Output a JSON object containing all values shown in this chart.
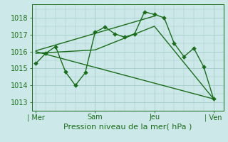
{
  "bg_color": "#cce8e8",
  "grid_color": "#aacfcf",
  "line_color": "#1a6e1a",
  "title": "Pression niveau de la mer( hPa )",
  "ylim": [
    1012.5,
    1018.8
  ],
  "yticks": [
    1013,
    1014,
    1015,
    1016,
    1017,
    1018
  ],
  "xlim": [
    -0.2,
    9.5
  ],
  "xtick_labels": [
    "| Mer",
    "Sam",
    "Jeu",
    "| Ven"
  ],
  "xtick_positions": [
    0.0,
    3.0,
    6.0,
    9.0
  ],
  "series1_x": [
    0,
    0.5,
    1.0,
    1.5,
    2.0,
    2.5,
    3.0,
    3.5,
    4.0,
    4.5,
    5.0,
    5.5,
    6.0,
    6.5,
    7.0,
    7.5,
    8.0,
    8.5,
    9.0
  ],
  "series1_y": [
    1015.3,
    1015.9,
    1016.3,
    1014.8,
    1014.0,
    1014.75,
    1017.15,
    1017.45,
    1017.05,
    1016.85,
    1017.05,
    1018.35,
    1018.2,
    1018.0,
    1016.5,
    1015.7,
    1016.2,
    1015.1,
    1013.2
  ],
  "series2_x": [
    0,
    3,
    6,
    9
  ],
  "series2_y": [
    1015.9,
    1016.1,
    1017.5,
    1013.2
  ],
  "series3_x": [
    0,
    6
  ],
  "series3_y": [
    1016.05,
    1018.1
  ],
  "series4_x": [
    0,
    9
  ],
  "series4_y": [
    1016.0,
    1013.2
  ],
  "marker_size": 3.0,
  "linewidth": 1.0,
  "title_fontsize": 8,
  "tick_fontsize": 7
}
